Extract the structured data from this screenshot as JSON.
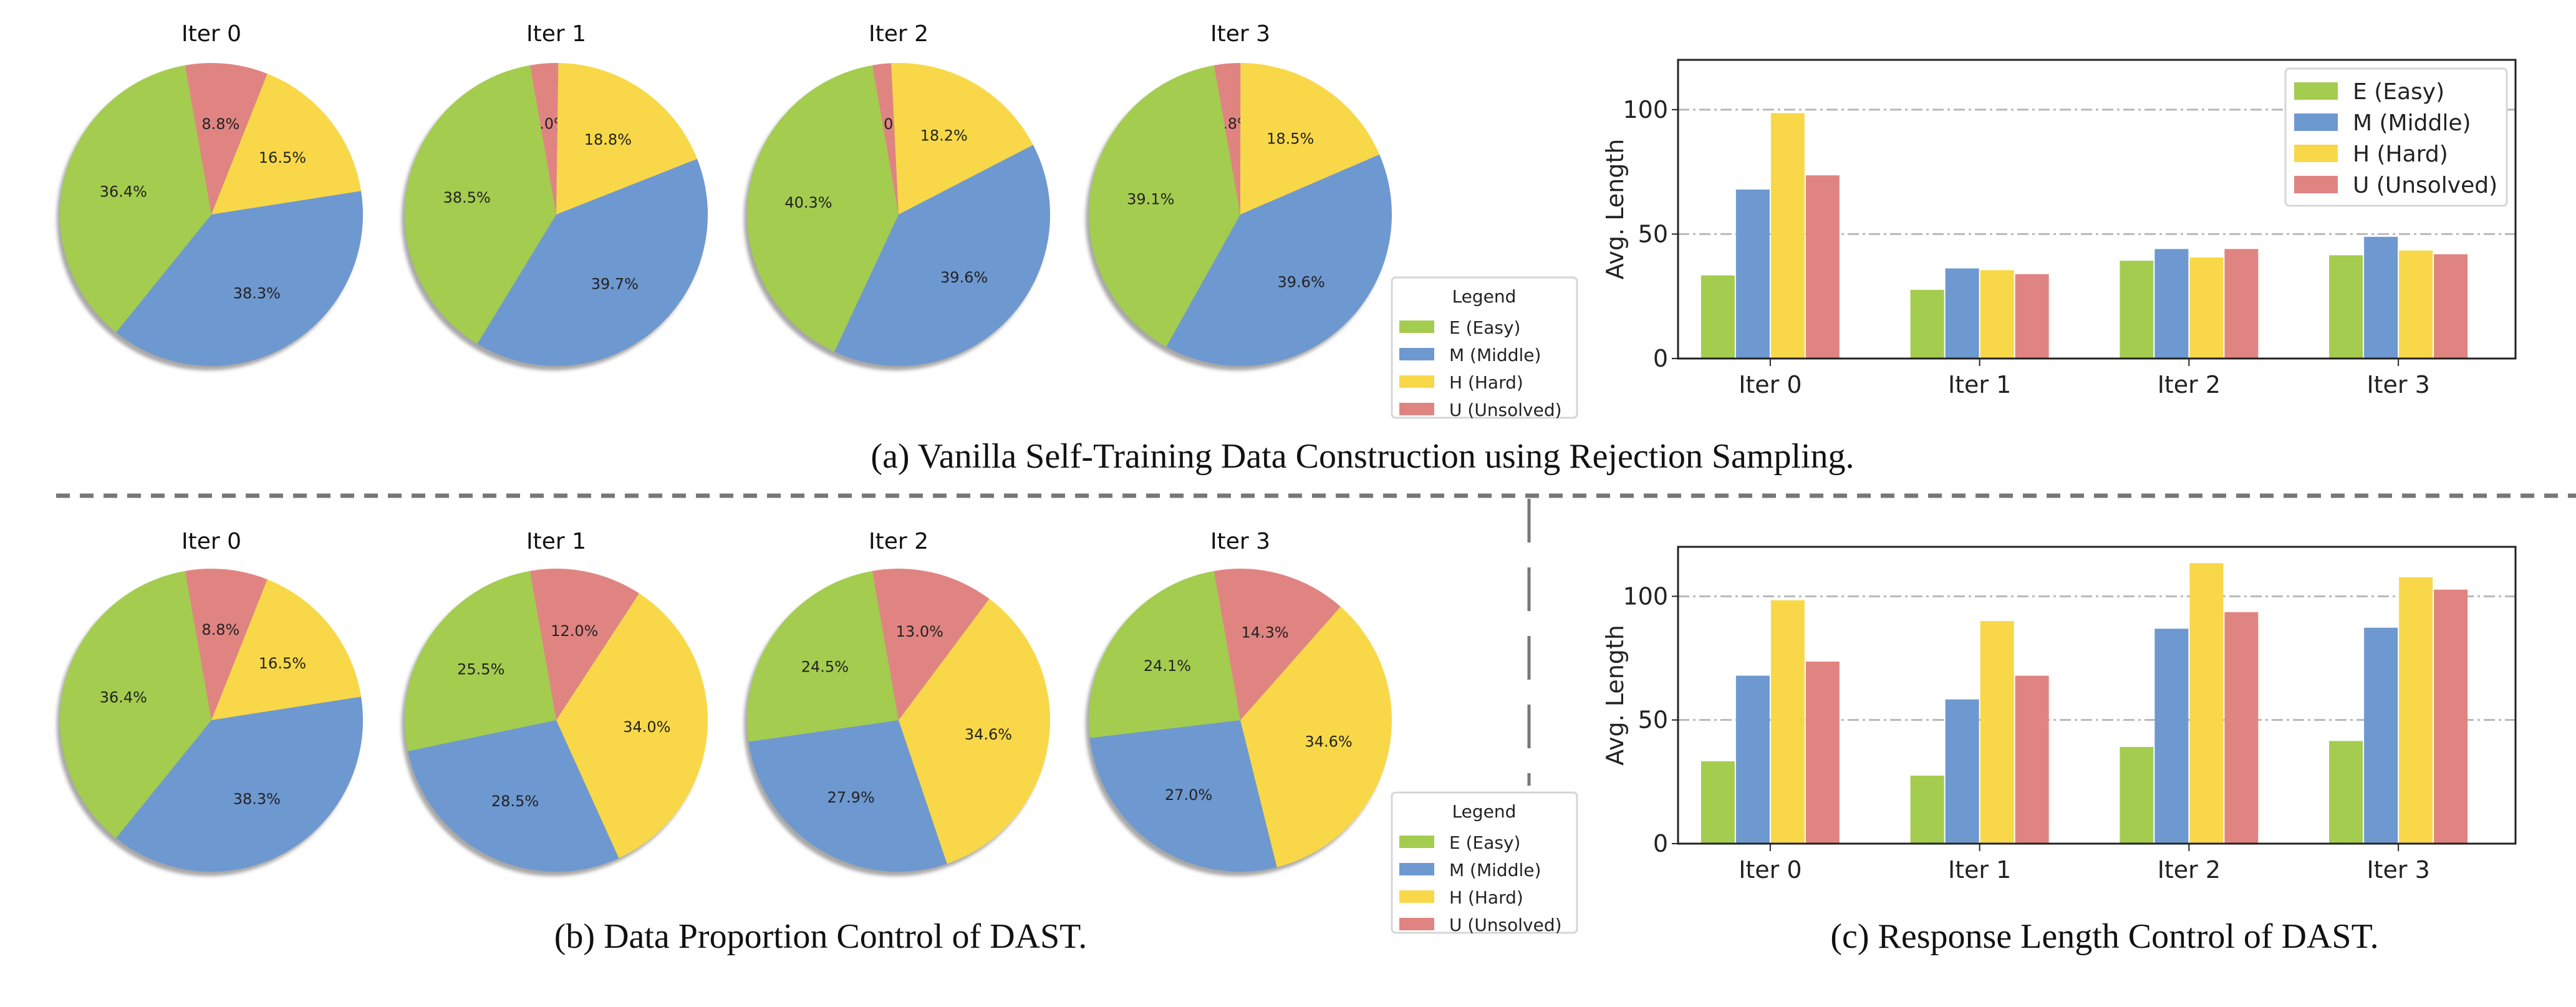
{
  "figure": {
    "colors": {
      "E": "#a4cc4f",
      "M": "#6e98d0",
      "H": "#f8d848",
      "U": "#e08482"
    },
    "captions": {
      "a": "(a) Vanilla Self-Training Data Construction using Rejection Sampling.",
      "b": "(b) Data Proportion Control of DAST.",
      "c": "(c) Response Length Control of DAST."
    },
    "legend": {
      "title": "Legend",
      "items": [
        {
          "key": "E",
          "label": "E (Easy)"
        },
        {
          "key": "M",
          "label": "M (Middle)"
        },
        {
          "key": "H",
          "label": "H (Hard)"
        },
        {
          "key": "U",
          "label": "U (Unsolved)"
        }
      ]
    }
  },
  "chart_data": [
    {
      "id": "a-pies",
      "type": "pie",
      "caption": "(a) Vanilla Self-Training Data Construction using Rejection Sampling.",
      "legend": [
        "E (Easy)",
        "M (Middle)",
        "H (Hard)",
        "U (Unsolved)"
      ],
      "pies": [
        {
          "title": "Iter 0",
          "slices": {
            "E": 36.4,
            "M": 38.3,
            "H": 16.5,
            "U": 8.8
          }
        },
        {
          "title": "Iter 1",
          "slices": {
            "E": 38.5,
            "M": 39.7,
            "H": 18.8,
            "U": 3.0
          }
        },
        {
          "title": "Iter 2",
          "slices": {
            "E": 40.3,
            "M": 39.6,
            "H": 18.2,
            "U": 2.0
          }
        },
        {
          "title": "Iter 3",
          "slices": {
            "E": 39.1,
            "M": 39.6,
            "H": 18.5,
            "U": 2.8
          }
        }
      ]
    },
    {
      "id": "a-bars",
      "type": "bar",
      "categories": [
        "Iter 0",
        "Iter 1",
        "Iter 2",
        "Iter 3"
      ],
      "series": [
        {
          "name": "E (Easy)",
          "key": "E",
          "values": [
            33.4,
            27.6,
            39.3,
            41.5
          ]
        },
        {
          "name": "M (Middle)",
          "key": "M",
          "values": [
            67.9,
            36.2,
            44.0,
            48.9
          ]
        },
        {
          "name": "H (Hard)",
          "key": "H",
          "values": [
            98.6,
            35.5,
            40.6,
            43.4
          ]
        },
        {
          "name": "U (Unsolved)",
          "key": "U",
          "values": [
            73.6,
            33.9,
            44.0,
            41.9
          ]
        }
      ],
      "xlabel": "",
      "ylabel": "Avg. Length",
      "ylim": [
        0,
        120
      ],
      "yticks": [
        0,
        50,
        100
      ],
      "grid": true,
      "legend_position": "top-right"
    },
    {
      "id": "b-pies",
      "type": "pie",
      "caption": "(b) Data Proportion Control of DAST.",
      "legend": [
        "E (Easy)",
        "M (Middle)",
        "H (Hard)",
        "U (Unsolved)"
      ],
      "pies": [
        {
          "title": "Iter 0",
          "slices": {
            "E": 36.4,
            "M": 38.3,
            "H": 16.5,
            "U": 8.8
          }
        },
        {
          "title": "Iter 1",
          "slices": {
            "E": 25.5,
            "M": 28.5,
            "H": 34.0,
            "U": 12.0
          }
        },
        {
          "title": "Iter 2",
          "slices": {
            "E": 24.5,
            "M": 27.9,
            "H": 34.6,
            "U": 13.0
          }
        },
        {
          "title": "Iter 3",
          "slices": {
            "E": 24.1,
            "M": 27.0,
            "H": 34.6,
            "U": 14.3
          }
        }
      ]
    },
    {
      "id": "c-bars",
      "type": "bar",
      "caption": "(c) Response Length Control of DAST.",
      "categories": [
        "Iter 0",
        "Iter 1",
        "Iter 2",
        "Iter 3"
      ],
      "series": [
        {
          "name": "E (Easy)",
          "key": "E",
          "values": [
            33.3,
            27.5,
            39.1,
            41.5
          ]
        },
        {
          "name": "M (Middle)",
          "key": "M",
          "values": [
            67.9,
            58.3,
            86.9,
            87.3
          ]
        },
        {
          "name": "H (Hard)",
          "key": "H",
          "values": [
            98.4,
            90.0,
            113.4,
            107.7
          ]
        },
        {
          "name": "U (Unsolved)",
          "key": "U",
          "values": [
            73.6,
            67.9,
            93.6,
            102.7
          ]
        }
      ],
      "xlabel": "",
      "ylabel": "Avg. Length",
      "ylim": [
        0,
        120
      ],
      "yticks": [
        0,
        50,
        100
      ],
      "grid": true,
      "legend_position": "none"
    }
  ]
}
